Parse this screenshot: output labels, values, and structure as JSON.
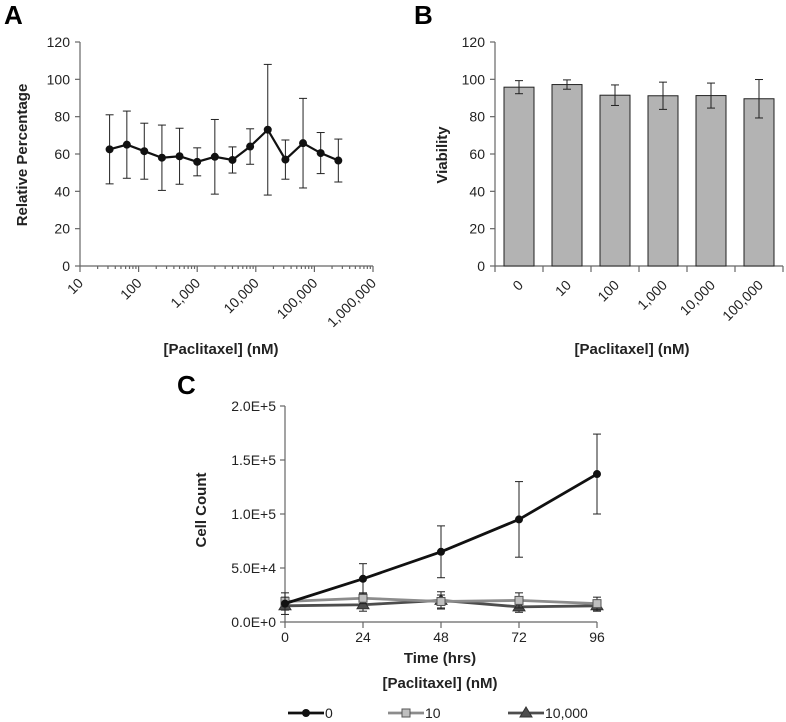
{
  "chart_data": [
    {
      "panel": "A",
      "type": "line",
      "xscale": "log",
      "xlim": [
        10,
        1000000
      ],
      "ylim": [
        0,
        120
      ],
      "yticks": [
        0,
        20,
        40,
        60,
        80,
        100,
        120
      ],
      "xtick_values": [
        10,
        100,
        1000,
        10000,
        100000,
        1000000
      ],
      "xtick_labels": [
        "10",
        "100",
        "1,000",
        "10,000",
        "100,000",
        "1,000,000"
      ],
      "xlabel": "[Paclitaxel] (nM)",
      "ylabel": "Relative Percentage",
      "series": [
        {
          "name": "Relative Percentage",
          "color": "#111111",
          "x": [
            32,
            63,
            125,
            250,
            500,
            1000,
            2000,
            4000,
            8000,
            16000,
            32000,
            64000,
            128000,
            256000
          ],
          "y": [
            62.5,
            65,
            61.5,
            58,
            58.8,
            55.8,
            58.5,
            56.8,
            64,
            73,
            57,
            65.8,
            60.5,
            56.5
          ],
          "err": [
            18.5,
            18,
            15,
            17.5,
            15,
            7.5,
            20,
            7,
            9.5,
            35,
            10.5,
            24,
            11,
            11.5
          ]
        }
      ]
    },
    {
      "panel": "B",
      "type": "bar",
      "ylim": [
        0,
        120
      ],
      "yticks": [
        0,
        20,
        40,
        60,
        80,
        100,
        120
      ],
      "categories": [
        "0",
        "10",
        "100",
        "1,000",
        "10,000",
        "100,000"
      ],
      "values": [
        95.8,
        97.2,
        91.5,
        91.2,
        91.3,
        89.6
      ],
      "err": [
        3.5,
        2.5,
        5.5,
        7.3,
        6.7,
        10.3
      ],
      "bar_color": "#b3b3b3",
      "xlabel": "[Paclitaxel] (nM)",
      "ylabel": "Viability"
    },
    {
      "panel": "C",
      "type": "line",
      "ylim": [
        0,
        200000
      ],
      "yticks": [
        0,
        50000,
        100000,
        150000,
        200000
      ],
      "ytick_labels": [
        "0.0E+0",
        "5.0E+4",
        "1.0E+5",
        "1.5E+5",
        "2.0E+5"
      ],
      "x": [
        0,
        24,
        48,
        72,
        96
      ],
      "xtick_labels": [
        "0",
        "24",
        "48",
        "72",
        "96"
      ],
      "xlabel": "Time (hrs)",
      "ylabel": "Cell Count",
      "legend_title": "[Paclitaxel] (nM)",
      "series": [
        {
          "name": "0",
          "marker": "circle",
          "color": "#111111",
          "values": [
            17000,
            40000,
            65000,
            95000,
            137000
          ],
          "err": [
            10000,
            14000,
            24000,
            35000,
            37000
          ]
        },
        {
          "name": "10",
          "marker": "square",
          "color": "#8c8c8c",
          "values": [
            19000,
            22000,
            19000,
            20000,
            17000
          ],
          "err": [
            4000,
            5000,
            6000,
            7000,
            6000
          ]
        },
        {
          "name": "10,000",
          "marker": "triangle",
          "color": "#4d4d4d",
          "values": [
            15000,
            16000,
            20000,
            14000,
            15000
          ],
          "err": [
            4000,
            6000,
            8000,
            5000,
            5000
          ]
        }
      ]
    }
  ]
}
